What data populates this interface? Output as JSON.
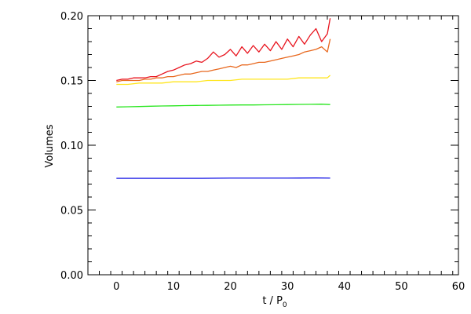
{
  "chart_data": {
    "type": "line",
    "xlabel": "t / P",
    "xlabel_subscript": "0",
    "ylabel": "Volumes",
    "xlim": [
      -5,
      60
    ],
    "ylim": [
      0.0,
      0.2
    ],
    "xticks": [
      0,
      10,
      20,
      30,
      40,
      50,
      60
    ],
    "xtick_labels": [
      "0",
      "10",
      "20",
      "30",
      "40",
      "50",
      "60"
    ],
    "yticks": [
      0.0,
      0.05,
      0.1,
      0.15,
      0.2
    ],
    "ytick_labels": [
      "0.00",
      "0.05",
      "0.10",
      "0.15",
      "0.20"
    ],
    "grid": false,
    "series": [
      {
        "color": "#e8141e",
        "x": [
          0,
          1,
          2,
          3,
          4,
          5,
          6,
          7,
          8,
          9,
          10,
          11,
          12,
          13,
          14,
          15,
          16,
          17,
          18,
          19,
          20,
          21,
          22,
          23,
          24,
          25,
          26,
          27,
          28,
          29,
          30,
          31,
          32,
          33,
          34,
          35,
          36,
          37,
          37.5
        ],
        "y": [
          0.15,
          0.151,
          0.151,
          0.152,
          0.152,
          0.152,
          0.153,
          0.153,
          0.155,
          0.157,
          0.158,
          0.16,
          0.162,
          0.163,
          0.165,
          0.164,
          0.167,
          0.172,
          0.168,
          0.17,
          0.174,
          0.169,
          0.176,
          0.171,
          0.177,
          0.172,
          0.178,
          0.173,
          0.18,
          0.174,
          0.182,
          0.176,
          0.184,
          0.178,
          0.185,
          0.19,
          0.18,
          0.186,
          0.198
        ]
      },
      {
        "color": "#e8681e",
        "x": [
          0,
          1,
          2,
          3,
          4,
          5,
          6,
          7,
          8,
          9,
          10,
          11,
          12,
          13,
          14,
          15,
          16,
          17,
          18,
          19,
          20,
          21,
          22,
          23,
          24,
          25,
          26,
          27,
          28,
          29,
          30,
          31,
          32,
          33,
          34,
          35,
          36,
          37,
          37.5
        ],
        "y": [
          0.149,
          0.15,
          0.15,
          0.15,
          0.15,
          0.151,
          0.151,
          0.152,
          0.152,
          0.153,
          0.153,
          0.154,
          0.155,
          0.155,
          0.156,
          0.157,
          0.157,
          0.158,
          0.159,
          0.16,
          0.161,
          0.16,
          0.162,
          0.162,
          0.163,
          0.164,
          0.164,
          0.165,
          0.166,
          0.167,
          0.168,
          0.169,
          0.17,
          0.172,
          0.173,
          0.174,
          0.176,
          0.172,
          0.182
        ]
      },
      {
        "color": "#ffe61e",
        "x": [
          0,
          2,
          4,
          6,
          8,
          10,
          12,
          14,
          16,
          18,
          20,
          22,
          24,
          26,
          28,
          30,
          32,
          34,
          36,
          37,
          37.5
        ],
        "y": [
          0.147,
          0.147,
          0.148,
          0.148,
          0.148,
          0.149,
          0.149,
          0.149,
          0.15,
          0.15,
          0.15,
          0.151,
          0.151,
          0.151,
          0.151,
          0.151,
          0.152,
          0.152,
          0.152,
          0.152,
          0.154
        ]
      },
      {
        "color": "#28e61e",
        "x": [
          0,
          2,
          4,
          6,
          8,
          10,
          12,
          14,
          16,
          18,
          20,
          22,
          24,
          26,
          28,
          30,
          32,
          34,
          36,
          37.5
        ],
        "y": [
          0.1295,
          0.1297,
          0.1299,
          0.1301,
          0.1303,
          0.1304,
          0.1306,
          0.1307,
          0.1308,
          0.1309,
          0.131,
          0.1311,
          0.1311,
          0.1312,
          0.1313,
          0.1314,
          0.1315,
          0.1316,
          0.1317,
          0.1314
        ]
      },
      {
        "color": "#1e1ee6",
        "x": [
          0,
          5,
          10,
          15,
          20,
          25,
          30,
          35,
          37.5
        ],
        "y": [
          0.0745,
          0.0745,
          0.0745,
          0.0745,
          0.0746,
          0.0746,
          0.0746,
          0.0747,
          0.0746
        ]
      }
    ]
  }
}
